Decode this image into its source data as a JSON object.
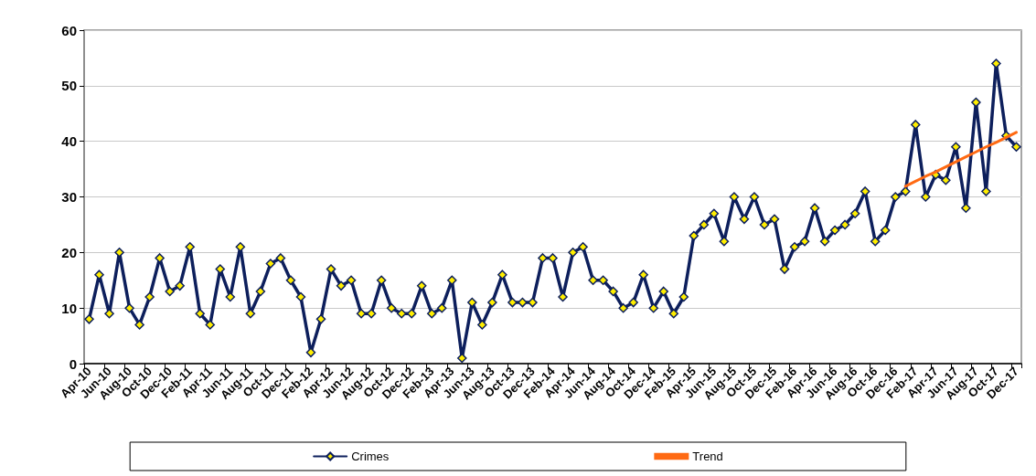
{
  "chart_data": {
    "type": "line",
    "categories": [
      "Apr-10",
      null,
      "Jun-10",
      null,
      "Aug-10",
      null,
      "Oct-10",
      null,
      "Dec-10",
      null,
      "Feb-11",
      null,
      "Apr-11",
      null,
      "Jun-11",
      null,
      "Aug-11",
      null,
      "Oct-11",
      null,
      "Dec-11",
      null,
      "Feb-12",
      null,
      "Apr-12",
      null,
      "Jun-12",
      null,
      "Aug-12",
      null,
      "Oct-12",
      null,
      "Dec-12",
      null,
      "Feb-13",
      null,
      "Apr-13",
      null,
      "Jun-13",
      null,
      "Aug-13",
      null,
      "Oct-13",
      null,
      "Dec-13",
      null,
      "Feb-14",
      null,
      "Apr-14",
      null,
      "Jun-14",
      null,
      "Aug-14",
      null,
      "Oct-14",
      null,
      "Dec-14",
      null,
      "Feb-15",
      null,
      "Apr-15",
      null,
      "Jun-15",
      null,
      "Aug-15",
      null,
      "Oct-15",
      null,
      "Dec-15",
      null,
      "Feb-16",
      null,
      "Apr-16",
      null,
      "Jun-16",
      null,
      "Aug-16",
      null,
      "Oct-16",
      null,
      "Dec-16",
      null,
      "Feb-17",
      null,
      "Apr-17",
      null,
      "Jun-17",
      null,
      "Aug-17",
      null,
      "Oct-17",
      null,
      "Dec-17"
    ],
    "series": [
      {
        "name": "Crimes",
        "color": "#0d1f5c",
        "marker": "diamond",
        "values": [
          8,
          16,
          9,
          20,
          10,
          7,
          12,
          19,
          13,
          14,
          21,
          9,
          7,
          17,
          12,
          21,
          9,
          13,
          18,
          19,
          15,
          12,
          2,
          8,
          17,
          14,
          15,
          9,
          9,
          15,
          10,
          9,
          9,
          14,
          9,
          10,
          15,
          1,
          11,
          7,
          11,
          16,
          11,
          11,
          11,
          19,
          19,
          12,
          20,
          21,
          15,
          15,
          13,
          10,
          11,
          16,
          10,
          13,
          9,
          12,
          23,
          25,
          27,
          22,
          30,
          26,
          30,
          25,
          26,
          17,
          21,
          22,
          28,
          22,
          24,
          25,
          27,
          31,
          22,
          24,
          30,
          31,
          43,
          30,
          34,
          33,
          39,
          28,
          47,
          31,
          54,
          41,
          39
        ]
      },
      {
        "name": "Trend",
        "color": "#ff6a13",
        "marker": "none",
        "values": [
          null,
          null,
          null,
          null,
          null,
          null,
          null,
          null,
          null,
          null,
          null,
          null,
          null,
          null,
          null,
          null,
          null,
          null,
          null,
          null,
          null,
          null,
          null,
          null,
          null,
          null,
          null,
          null,
          null,
          null,
          null,
          null,
          null,
          null,
          null,
          null,
          null,
          null,
          null,
          null,
          null,
          null,
          null,
          null,
          null,
          null,
          null,
          null,
          null,
          null,
          null,
          null,
          null,
          null,
          null,
          null,
          null,
          null,
          null,
          null,
          null,
          null,
          null,
          null,
          null,
          null,
          null,
          null,
          null,
          null,
          null,
          null,
          null,
          null,
          null,
          null,
          null,
          null,
          null,
          null,
          null,
          31.9,
          32.8,
          33.7,
          34.5,
          35.4,
          36.3,
          37.2,
          38.1,
          39.0,
          39.8,
          40.7,
          41.6
        ]
      }
    ],
    "ylim": [
      0,
      60
    ],
    "yticks": [
      0,
      10,
      20,
      30,
      40,
      50,
      60
    ],
    "grid": "y",
    "legend": "bottom",
    "line_style": "solid"
  }
}
